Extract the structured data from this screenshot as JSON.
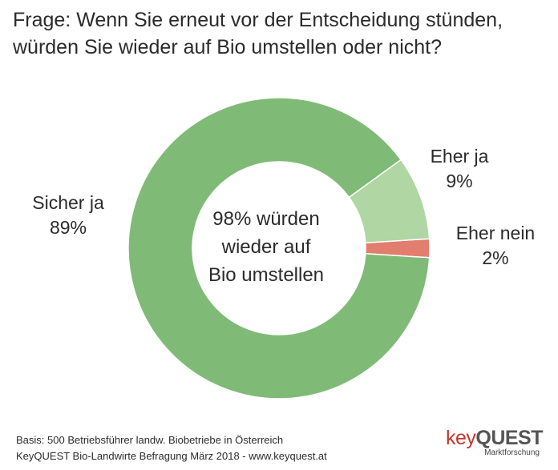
{
  "title": {
    "line1": "Frage: Wenn Sie erneut vor der Entscheidung stünden,",
    "line2": "würden Sie wieder auf Bio umstellen oder nicht?"
  },
  "chart_data": {
    "type": "pie",
    "donut": true,
    "slices": [
      {
        "label": "Sicher ja",
        "value_label": "89%",
        "value": 89,
        "color": "#7fbb76"
      },
      {
        "label": "Eher ja",
        "value_label": "9%",
        "value": 9,
        "color": "#b0d6a3"
      },
      {
        "label": "Eher nein",
        "value_label": "2%",
        "value": 2,
        "color": "#e27e6e"
      }
    ],
    "center_text": [
      "98% würden",
      "wieder auf",
      "Bio umstellen"
    ]
  },
  "footer": {
    "line1": "Basis: 500 Betriebsführer landw. Biobetriebe in Österreich",
    "line2": "KeyQUEST Bio-Landwirte Befragung März 2018 - www.keyquest.at"
  },
  "logo": {
    "key": "key",
    "quest": "QUEST",
    "sub": "Marktforschung"
  }
}
